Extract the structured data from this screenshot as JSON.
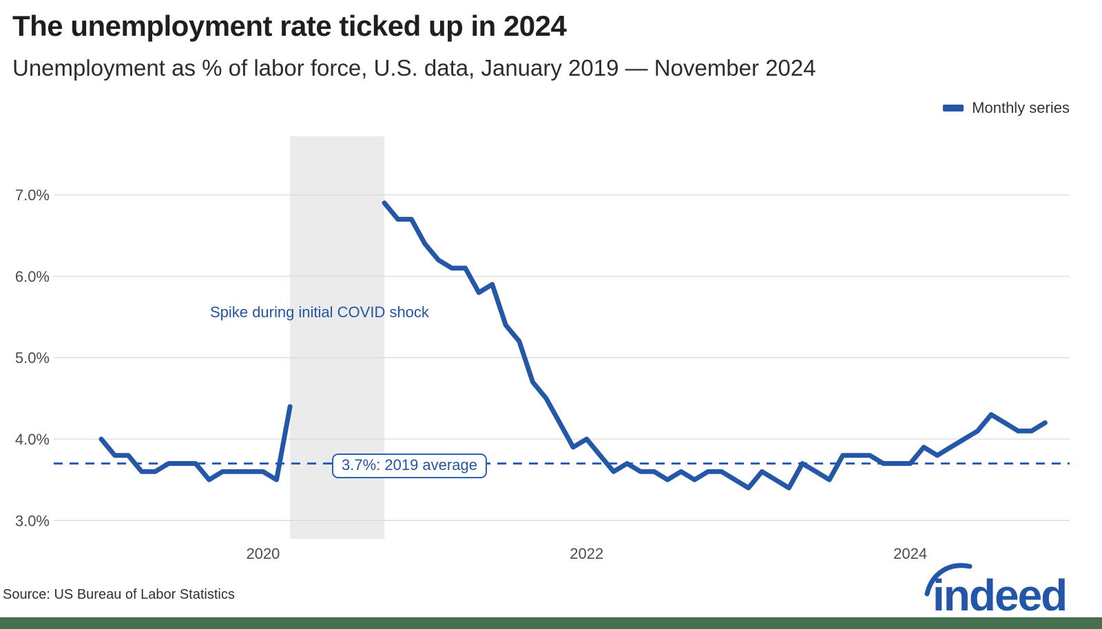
{
  "header": {
    "title": "The unemployment rate ticked up in 2024",
    "subtitle": "Unemployment as % of labor force, U.S. data, January 2019 — November 2024"
  },
  "legend": {
    "label": "Monthly series",
    "series_color": "#2557A7"
  },
  "annotations": {
    "covid_spike": "Spike during initial COVID shock",
    "avg_label": "3.7%: 2019 average"
  },
  "footer": {
    "source": "Source: US Bureau of Labor Statistics",
    "logo_text": "indeed",
    "bar_color": "#456F4E"
  },
  "chart_data": {
    "type": "line",
    "title": "The unemployment rate ticked up in 2024",
    "xlabel": "",
    "ylabel": "Unemployment as % of labor force",
    "unit": "percent",
    "start_month": "2019-01",
    "end_month": "2024-11",
    "ylim": [
      2.8,
      7.7
    ],
    "grid": true,
    "legend_position": "top-right",
    "y_ticks": [
      {
        "label": "3.0%",
        "value": 3.0
      },
      {
        "label": "4.0%",
        "value": 4.0
      },
      {
        "label": "5.0%",
        "value": 5.0
      },
      {
        "label": "6.0%",
        "value": 6.0
      },
      {
        "label": "7.0%",
        "value": 7.0
      }
    ],
    "x_ticks": [
      {
        "label": "2020",
        "month_index": 12
      },
      {
        "label": "2022",
        "month_index": 36
      },
      {
        "label": "2024",
        "month_index": 60
      }
    ],
    "reference_line": {
      "value": 3.7,
      "label": "3.7%: 2019 average",
      "style": "dashed",
      "color": "#2A5FB8"
    },
    "shaded_region": {
      "from_month_index": 14,
      "to_month_index": 21,
      "color": "#EBEBEB",
      "meaning": "Spike during initial COVID shock"
    },
    "series": [
      {
        "name": "Monthly series",
        "color": "#2557A7",
        "values": [
          4.0,
          3.8,
          3.8,
          3.6,
          3.6,
          3.7,
          3.7,
          3.7,
          3.5,
          3.6,
          3.6,
          3.6,
          3.6,
          3.5,
          4.4,
          null,
          null,
          null,
          null,
          null,
          null,
          6.9,
          6.7,
          6.7,
          6.4,
          6.2,
          6.1,
          6.1,
          5.8,
          5.9,
          5.4,
          5.2,
          4.7,
          4.5,
          4.2,
          3.9,
          4.0,
          3.8,
          3.6,
          3.7,
          3.6,
          3.6,
          3.5,
          3.6,
          3.5,
          3.6,
          3.6,
          3.5,
          3.4,
          3.6,
          3.5,
          3.4,
          3.7,
          3.6,
          3.5,
          3.8,
          3.8,
          3.8,
          3.7,
          3.7,
          3.7,
          3.9,
          3.8,
          3.9,
          4.0,
          4.1,
          4.3,
          4.2,
          4.1,
          4.1,
          4.2
        ]
      }
    ]
  }
}
